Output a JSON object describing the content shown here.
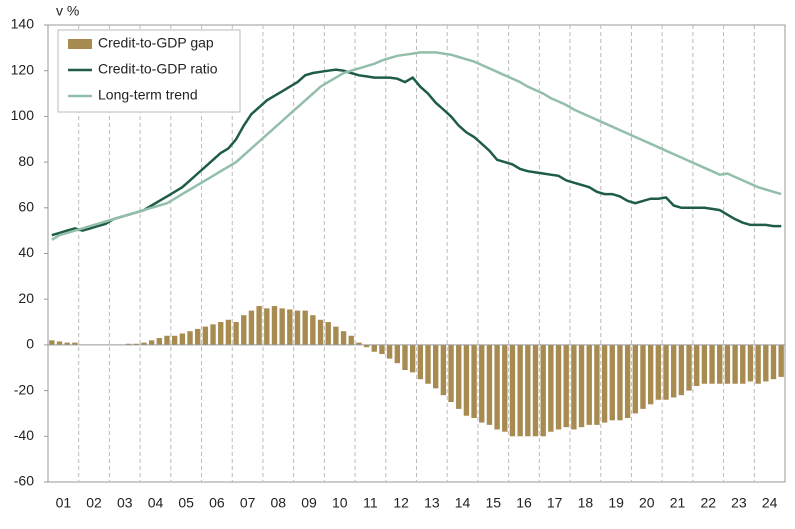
{
  "chart_data": {
    "type": "combo",
    "y_label": "v %",
    "categories": [
      null,
      "01",
      null,
      null,
      null,
      "02",
      null,
      null,
      null,
      "03",
      null,
      null,
      null,
      "04",
      null,
      null,
      null,
      "05",
      null,
      null,
      null,
      "06",
      null,
      null,
      null,
      "07",
      null,
      null,
      null,
      "08",
      null,
      null,
      null,
      "09",
      null,
      null,
      null,
      "10",
      null,
      null,
      null,
      "11",
      null,
      null,
      null,
      "12",
      null,
      null,
      null,
      "13",
      null,
      null,
      null,
      "14",
      null,
      null,
      null,
      "15",
      null,
      null,
      null,
      "16",
      null,
      null,
      null,
      "17",
      null,
      null,
      null,
      "18",
      null,
      null,
      null,
      "19",
      null,
      null,
      null,
      "20",
      null,
      null,
      null,
      "21",
      null,
      null,
      null,
      "22",
      null,
      null,
      null,
      "23",
      null,
      null,
      null,
      "24",
      null,
      null
    ],
    "series": [
      {
        "name": "Credit-to-GDP gap",
        "type": "bar",
        "color": "#a88b50",
        "values": [
          2,
          1.5,
          1,
          1,
          0,
          0,
          0,
          0,
          0,
          0,
          0.5,
          0.5,
          1,
          2,
          3,
          4,
          4,
          5,
          6,
          7,
          8,
          9,
          10,
          11,
          10,
          13,
          15,
          17,
          16,
          17,
          16,
          15.5,
          15,
          15,
          13,
          11,
          10,
          8,
          6,
          4,
          1,
          -1,
          -3,
          -4,
          -6,
          -8,
          -11,
          -12,
          -15,
          -17,
          -19,
          -22,
          -25,
          -28,
          -31,
          -32,
          -34,
          -35,
          -37,
          -38,
          -40,
          -40,
          -40,
          -40,
          -40,
          -38,
          -37,
          -36,
          -37,
          -36,
          -35,
          -35,
          -34,
          -33,
          -33,
          -32,
          -30,
          -28,
          -26,
          -24,
          -24,
          -23,
          -22,
          -20,
          -18,
          -17,
          -17,
          -17,
          -17,
          -17,
          -17,
          -16,
          -17,
          -16,
          -15,
          -14
        ]
      },
      {
        "name": "Credit-to-GDP ratio",
        "type": "line",
        "color": "#1f5c45",
        "values": [
          48,
          49,
          50,
          51,
          50,
          51,
          52,
          53,
          55,
          56,
          57,
          58,
          59,
          61,
          63,
          65,
          67,
          69,
          72,
          75,
          78,
          81,
          84,
          86,
          90,
          96,
          101,
          104,
          107,
          109,
          111,
          113,
          115,
          118,
          119,
          119.5,
          120,
          120.5,
          120,
          119,
          118,
          117.5,
          117,
          117,
          117,
          116.5,
          115,
          117,
          113,
          110,
          106,
          103,
          100,
          96,
          93,
          91,
          88,
          85,
          81,
          80,
          79,
          77,
          76,
          75.5,
          75,
          74.5,
          74,
          72,
          71,
          70,
          69,
          67,
          66,
          66,
          65,
          63,
          62,
          63,
          64,
          64,
          64.5,
          61,
          60,
          60,
          60,
          60,
          59.5,
          59,
          57,
          55,
          53.5,
          52.5,
          52.5,
          52.5,
          52,
          52
        ]
      },
      {
        "name": "Long-term trend",
        "type": "line",
        "color": "#93bfaa",
        "values": [
          46,
          48,
          49,
          50,
          51,
          52,
          53,
          54,
          55,
          56,
          57,
          58,
          59,
          60,
          61,
          62,
          64,
          66,
          68,
          70,
          72,
          74,
          76,
          78,
          80,
          83,
          86,
          89,
          92,
          95,
          98,
          101,
          104,
          107,
          110,
          113,
          115,
          117,
          119,
          120,
          121,
          122,
          123,
          124.5,
          125.5,
          126.5,
          127,
          127.5,
          128,
          128,
          128,
          127.5,
          127,
          126,
          125,
          124,
          122.5,
          121,
          119.5,
          118,
          116.5,
          115,
          113,
          111.5,
          110,
          108,
          106.5,
          105,
          103,
          101.5,
          100,
          98.5,
          97,
          95.5,
          94,
          92.5,
          91,
          89.5,
          88,
          86.5,
          85,
          83.5,
          82,
          80.5,
          79,
          77.5,
          76,
          74.5,
          75,
          73.5,
          72,
          70.5,
          69,
          68,
          67,
          66
        ]
      }
    ],
    "ylim": [
      -60,
      140
    ],
    "yticks": [
      -60,
      -40,
      -20,
      0,
      20,
      40,
      60,
      80,
      100,
      120,
      140
    ]
  }
}
